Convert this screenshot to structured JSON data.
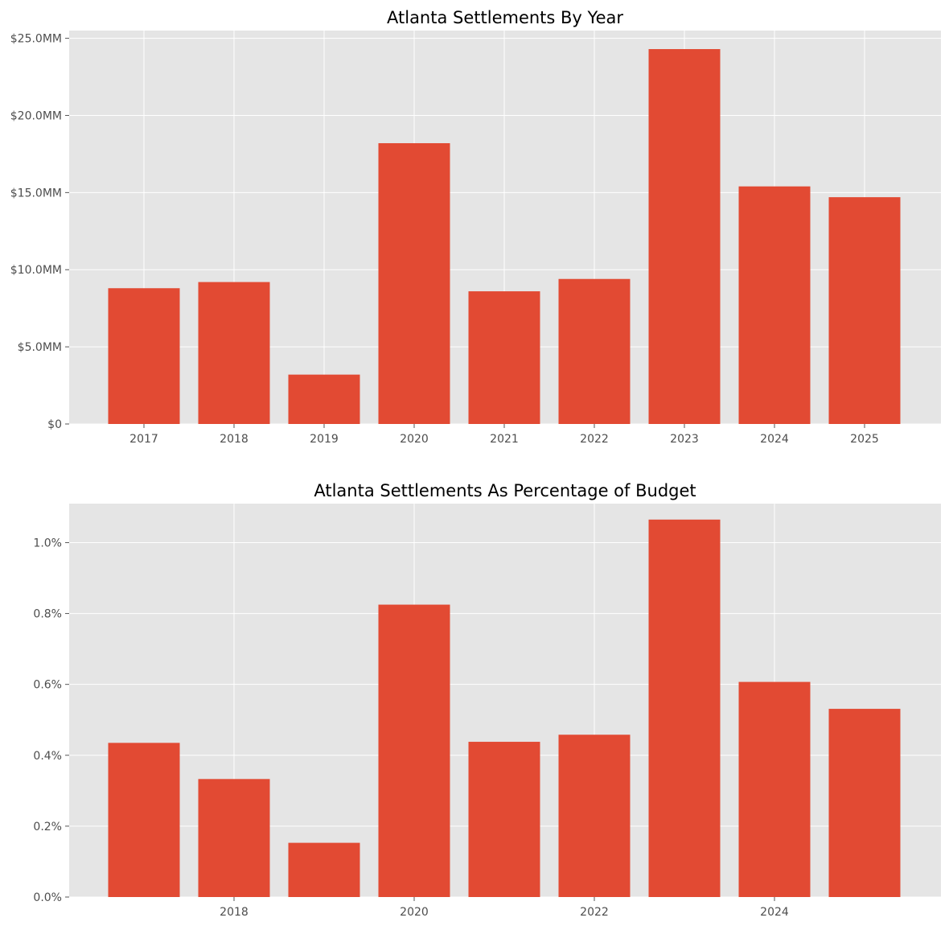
{
  "chart_data": [
    {
      "type": "bar",
      "title": "Atlanta Settlements By Year",
      "xlabel": "",
      "ylabel": "",
      "categories": [
        "2017",
        "2018",
        "2019",
        "2020",
        "2021",
        "2022",
        "2023",
        "2024",
        "2025"
      ],
      "x_tick_labels": [
        "2017",
        "2018",
        "2019",
        "2020",
        "2021",
        "2022",
        "2023",
        "2024",
        "2025"
      ],
      "values": [
        8.8,
        9.2,
        3.2,
        18.2,
        8.6,
        9.4,
        24.3,
        15.4,
        14.7
      ],
      "value_units": "$MM",
      "ylim": [
        0,
        25.5
      ],
      "y_ticks": [
        0,
        5,
        10,
        15,
        20,
        25
      ],
      "y_tick_labels": [
        "$0",
        "$5.0MM",
        "$10.0MM",
        "$15.0MM",
        "$20.0MM",
        "$25.0MM"
      ],
      "bar_color": "#E24A33",
      "grid": true
    },
    {
      "type": "bar",
      "title": "Atlanta Settlements As Percentage of Budget",
      "xlabel": "",
      "ylabel": "",
      "categories": [
        "2017",
        "2018",
        "2019",
        "2020",
        "2021",
        "2022",
        "2023",
        "2024",
        "2025"
      ],
      "x_tick_labels": [
        "2018",
        "2020",
        "2022",
        "2024"
      ],
      "values": [
        0.435,
        0.333,
        0.153,
        0.825,
        0.438,
        0.458,
        1.065,
        0.607,
        0.531
      ],
      "value_units": "%",
      "ylim": [
        0,
        1.11
      ],
      "y_ticks": [
        0,
        0.2,
        0.4,
        0.6,
        0.8,
        1.0
      ],
      "y_tick_labels": [
        "0.0%",
        "0.2%",
        "0.4%",
        "0.6%",
        "0.8%",
        "1.0%"
      ],
      "bar_color": "#E24A33",
      "grid": true
    }
  ]
}
